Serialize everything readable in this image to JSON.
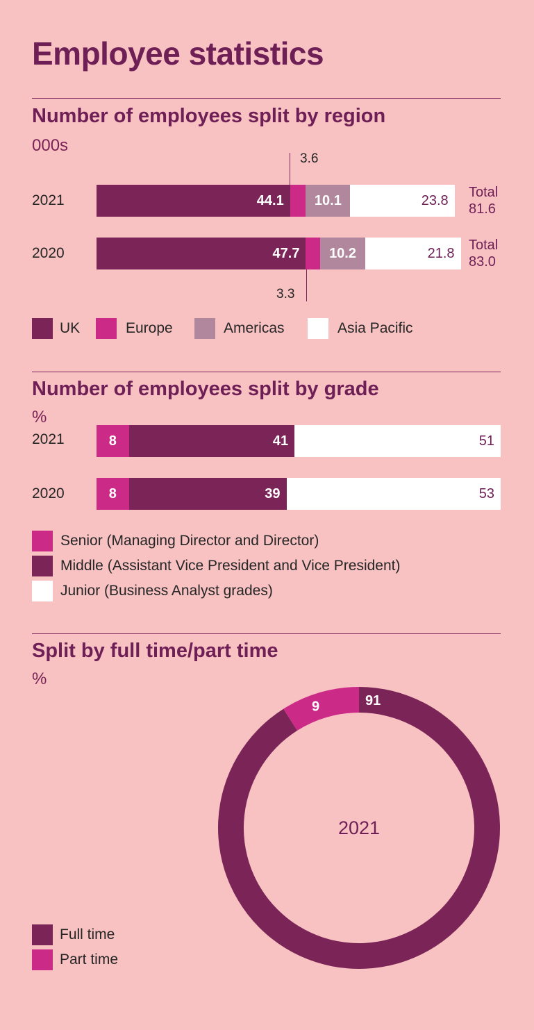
{
  "page": {
    "title": "Employee statistics"
  },
  "colors": {
    "background": "#f8c1c2",
    "uk": "#7b2457",
    "europe": "#cc2a87",
    "americas": "#b1879d",
    "asia_pacific": "#ffffff",
    "heading": "#6e1f55"
  },
  "region": {
    "heading": "Number of employees split by region",
    "unit": "000s",
    "legend": [
      "UK",
      "Europe",
      "Americas",
      "Asia Pacific"
    ],
    "rows": [
      {
        "year": "2021",
        "total_label": "Total",
        "total_value": "81.6"
      },
      {
        "year": "2020",
        "total_label": "Total",
        "total_value": "83.0"
      }
    ],
    "callouts": {
      "europe_2021": "3.6",
      "europe_2020": "3.3"
    }
  },
  "grade": {
    "heading": "Number of employees split by grade",
    "unit": "%",
    "legend": [
      "Senior (Managing Director and Director)",
      "Middle (Assistant Vice President and Vice President)",
      "Junior (Business Analyst grades)"
    ],
    "rows": [
      {
        "year": "2021"
      },
      {
        "year": "2020"
      }
    ]
  },
  "time": {
    "heading": "Split by full time/part time",
    "unit": "%",
    "legend": [
      "Full time",
      "Part time"
    ],
    "center_label": "2021"
  },
  "chart_data": [
    {
      "type": "bar",
      "orientation": "horizontal-stacked",
      "title": "Number of employees split by region",
      "ylabel": "000s",
      "categories": [
        "2021",
        "2020"
      ],
      "series": [
        {
          "name": "UK",
          "values": [
            44.1,
            47.7
          ]
        },
        {
          "name": "Europe",
          "values": [
            3.6,
            3.3
          ]
        },
        {
          "name": "Americas",
          "values": [
            10.1,
            10.2
          ]
        },
        {
          "name": "Asia Pacific",
          "values": [
            23.8,
            21.8
          ]
        }
      ],
      "totals": [
        81.6,
        83.0
      ]
    },
    {
      "type": "bar",
      "orientation": "horizontal-stacked",
      "title": "Number of employees split by grade",
      "ylabel": "%",
      "categories": [
        "2021",
        "2020"
      ],
      "series": [
        {
          "name": "Senior (Managing Director and Director)",
          "values": [
            8,
            8
          ]
        },
        {
          "name": "Middle (Assistant Vice President and Vice President)",
          "values": [
            41,
            39
          ]
        },
        {
          "name": "Junior (Business Analyst grades)",
          "values": [
            51,
            53
          ]
        }
      ]
    },
    {
      "type": "pie",
      "variant": "donut",
      "title": "Split by full time/part time",
      "ylabel": "%",
      "center_label": "2021",
      "categories": [
        "Full time",
        "Part time"
      ],
      "values": [
        91,
        9
      ]
    }
  ]
}
